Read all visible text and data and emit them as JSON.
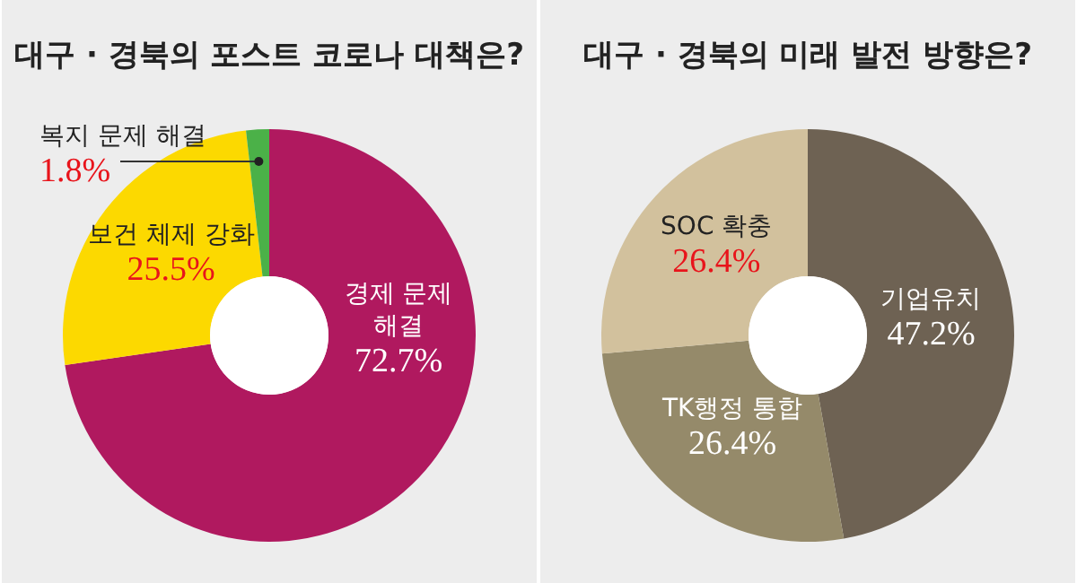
{
  "chart_data": [
    {
      "type": "donut",
      "title": "대구 · 경북의 포스트 코로나 대책은?",
      "categories": [
        "경제 문제 해결",
        "보건 체제 강화",
        "복지 문제 해결"
      ],
      "values": [
        72.7,
        25.5,
        1.8
      ],
      "colors": [
        "#b0195f",
        "#fcd900",
        "#4bb148"
      ],
      "value_labels": [
        "72.7%",
        "25.5%",
        "1.8%"
      ]
    },
    {
      "type": "donut",
      "title": "대구 · 경북의 미래 발전 방향은?",
      "categories": [
        "기업유치",
        "TK행정 통합",
        "SOC 확충"
      ],
      "values": [
        47.2,
        26.4,
        26.4
      ],
      "colors": [
        "#6e6253",
        "#958a6a",
        "#d2c19d"
      ],
      "value_labels": [
        "47.2%",
        "26.4%",
        "26.4%"
      ]
    }
  ]
}
